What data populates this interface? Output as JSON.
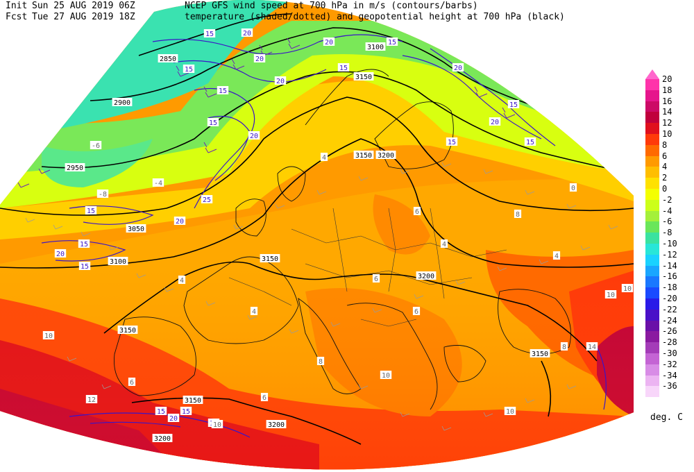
{
  "header": {
    "init_label": "Init",
    "init_time": "Sun 25 AUG 2019 06Z",
    "init_desc": "NCEP GFS wind speed at 700 hPa in m/s (contours/barbs)",
    "fcst_label": "Fcst",
    "fcst_time": "Tue 27 AUG 2019 18Z",
    "fcst_desc": "temperature (shaded/dotted) and geopotential height at 700 hPa (black)"
  },
  "colorbar": {
    "top_color": "#ff66cc",
    "bins": [
      {
        "label": "20",
        "color": "#ff33aa"
      },
      {
        "label": "18",
        "color": "#e6158c"
      },
      {
        "label": "16",
        "color": "#cc0a66"
      },
      {
        "label": "14",
        "color": "#c0003c"
      },
      {
        "label": "12",
        "color": "#e0101e"
      },
      {
        "label": "10",
        "color": "#ff3a0a"
      },
      {
        "label": "8",
        "color": "#ff6a00"
      },
      {
        "label": "6",
        "color": "#ff9a00"
      },
      {
        "label": "4",
        "color": "#ffbe00"
      },
      {
        "label": "2",
        "color": "#ffe100"
      },
      {
        "label": "0",
        "color": "#f4ff00"
      },
      {
        "label": "-2",
        "color": "#ccff1a"
      },
      {
        "label": "-4",
        "color": "#a4f03a"
      },
      {
        "label": "-6",
        "color": "#6ae65a"
      },
      {
        "label": "-8",
        "color": "#3ae2a0"
      },
      {
        "label": "-10",
        "color": "#28e6d8"
      },
      {
        "label": "-12",
        "color": "#1ad2ff"
      },
      {
        "label": "-14",
        "color": "#1aa6ff"
      },
      {
        "label": "-16",
        "color": "#1a78ff"
      },
      {
        "label": "-18",
        "color": "#1a4aff"
      },
      {
        "label": "-20",
        "color": "#2a1ae8"
      },
      {
        "label": "-22",
        "color": "#4a10c8"
      },
      {
        "label": "-24",
        "color": "#6a10a8"
      },
      {
        "label": "-26",
        "color": "#8a1aa0"
      },
      {
        "label": "-28",
        "color": "#a43cb8"
      },
      {
        "label": "-30",
        "color": "#c464d4"
      },
      {
        "label": "-32",
        "color": "#d88ce6"
      },
      {
        "label": "-34",
        "color": "#ecb4f2"
      },
      {
        "label": "-36",
        "color": "#f8d6fa"
      }
    ],
    "units": "deg. C"
  },
  "map": {
    "height_labels": [
      "2850",
      "2900",
      "2950",
      "3050",
      "3100",
      "3150",
      "3200",
      "3150",
      "3100",
      "3150",
      "3200",
      "3150",
      "3150",
      "3200",
      "3200",
      "3150",
      "3200"
    ],
    "wind_labels": [
      "15",
      "20",
      "20",
      "15",
      "20",
      "15",
      "20",
      "15",
      "20",
      "15",
      "15",
      "20",
      "15",
      "15",
      "20",
      "15",
      "25",
      "20",
      "15",
      "15",
      "20",
      "15",
      "15",
      "20",
      "15",
      "15"
    ],
    "temp_labels": [
      "-6",
      "-4",
      "-8",
      "4",
      "6",
      "0",
      "8",
      "4",
      "4",
      "6",
      "6",
      "8",
      "10",
      "10",
      "8",
      "4",
      "10",
      "10",
      "12",
      "10",
      "6",
      "6",
      "4",
      "14",
      "10"
    ]
  }
}
